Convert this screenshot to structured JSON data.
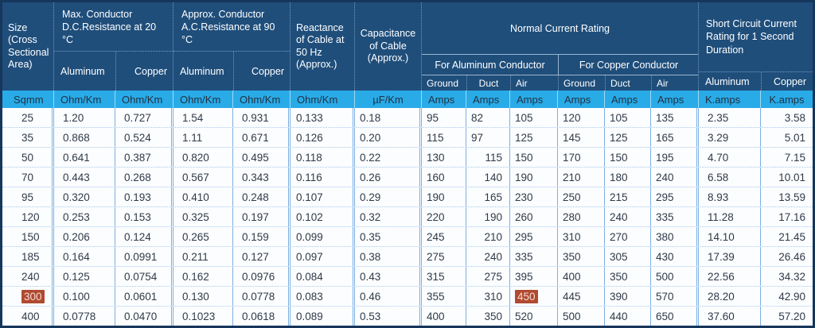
{
  "colors": {
    "header_bg": "#1F4E7B",
    "header_text": "#FFFFFF",
    "units_bg": "#29ABE8",
    "grid_line": "#7DB0E2",
    "outer_border": "#16365C",
    "highlight_bg": "#B04A31",
    "highlight_text": "#F6DCD2"
  },
  "header": {
    "size_label": "Size (Cross Sectional Area)",
    "dc_group": {
      "title": "Max. Conductor D.C.Resistance at 20 °C",
      "cols": [
        "Aluminum",
        "Copper"
      ]
    },
    "ac_group": {
      "title": "Approx. Conductor A.C.Resistance at 90 °C",
      "cols": [
        "Aluminum",
        "Copper"
      ]
    },
    "reactance_label": "Reactance of Cable at 50 Hz (Approx.)",
    "capacitance_label": "Capacitance of Cable (Approx.)",
    "ncr_group": {
      "title": "Normal Current Rating",
      "subgroups": [
        {
          "title": "For Aluminum Conductor",
          "cols": [
            "Ground",
            "Duct",
            "Air"
          ]
        },
        {
          "title": "For Copper Conductor",
          "cols": [
            "Ground",
            "Duct",
            "Air"
          ]
        }
      ]
    },
    "sc_group": {
      "title": "Short Circuit Current Rating for 1 Second Duration",
      "cols": [
        "Aluminum",
        "Copper"
      ]
    }
  },
  "chart_data": {
    "type": "table",
    "columns": [
      "Size (Cross Sectional Area)",
      "Max. Conductor D.C.Resistance at 20 °C - Aluminum",
      "Max. Conductor D.C.Resistance at 20 °C - Copper",
      "Approx. Conductor A.C.Resistance at 90 °C - Aluminum",
      "Approx. Conductor A.C.Resistance at 90 °C - Copper",
      "Reactance of Cable at 50 Hz (Approx.)",
      "Capacitance of Cable (Approx.)",
      "Normal Current Rating - For Aluminum Conductor - Ground",
      "Normal Current Rating - For Aluminum Conductor - Duct",
      "Normal Current Rating - For Aluminum Conductor - Air",
      "Normal Current Rating - For Copper Conductor - Ground",
      "Normal Current Rating - For Copper Conductor - Duct",
      "Normal Current Rating - For Copper Conductor - Air",
      "Short Circuit Current Rating for 1 Second Duration - Aluminum",
      "Short Circuit Current Rating for 1 Second Duration - Copper"
    ],
    "units": [
      "Sqmm",
      "Ohm/Km",
      "Ohm/Km",
      "Ohm/Km",
      "Ohm/Km",
      "Ohm/Km",
      "µF/Km",
      "Amps",
      "Amps",
      "Amps",
      "Amps",
      "Amps",
      "Amps",
      "K.amps",
      "K.amps"
    ],
    "rows": [
      [
        "25",
        "1.20",
        "0.727",
        "1.54",
        "0.931",
        "0.133",
        "0.18",
        "95",
        "82",
        "105",
        "120",
        "105",
        "135",
        "2.35",
        "3.58"
      ],
      [
        "35",
        "0.868",
        "0.524",
        "1.11",
        "0.671",
        "0.126",
        "0.20",
        "115",
        "97",
        "125",
        "145",
        "125",
        "165",
        "3.29",
        "5.01"
      ],
      [
        "50",
        "0.641",
        "0.387",
        "0.820",
        "0.495",
        "0.118",
        "0.22",
        "130",
        "115",
        "150",
        "170",
        "150",
        "195",
        "4.70",
        "7.15"
      ],
      [
        "70",
        "0.443",
        "0.268",
        "0.567",
        "0.343",
        "0.116",
        "0.26",
        "160",
        "140",
        "190",
        "210",
        "180",
        "240",
        "6.58",
        "10.01"
      ],
      [
        "95",
        "0.320",
        "0.193",
        "0.410",
        "0.248",
        "0.107",
        "0.29",
        "190",
        "165",
        "230",
        "250",
        "215",
        "295",
        "8.93",
        "13.59"
      ],
      [
        "120",
        "0.253",
        "0.153",
        "0.325",
        "0.197",
        "0.102",
        "0.32",
        "220",
        "190",
        "260",
        "280",
        "240",
        "335",
        "11.28",
        "17.16"
      ],
      [
        "150",
        "0.206",
        "0.124",
        "0.265",
        "0.159",
        "0.099",
        "0.35",
        "245",
        "210",
        "295",
        "310",
        "270",
        "380",
        "14.10",
        "21.45"
      ],
      [
        "185",
        "0.164",
        "0.0991",
        "0.211",
        "0.127",
        "0.097",
        "0.38",
        "275",
        "240",
        "335",
        "350",
        "305",
        "430",
        "17.39",
        "26.46"
      ],
      [
        "240",
        "0.125",
        "0.0754",
        "0.162",
        "0.0976",
        "0.084",
        "0.43",
        "315",
        "275",
        "395",
        "400",
        "350",
        "500",
        "22.56",
        "34.32"
      ],
      [
        "300",
        "0.100",
        "0.0601",
        "0.130",
        "0.0778",
        "0.083",
        "0.46",
        "355",
        "310",
        "450",
        "445",
        "390",
        "570",
        "28.20",
        "42.90"
      ],
      [
        "400",
        "0.0778",
        "0.0470",
        "0.1023",
        "0.0618",
        "0.089",
        "0.53",
        "400",
        "350",
        "520",
        "500",
        "440",
        "650",
        "37.60",
        "57.20"
      ]
    ],
    "highlighted_cells": [
      {
        "row_index": 9,
        "column_index": 0,
        "value": "300"
      },
      {
        "row_index": 9,
        "column_index": 9,
        "value": "450"
      }
    ]
  }
}
